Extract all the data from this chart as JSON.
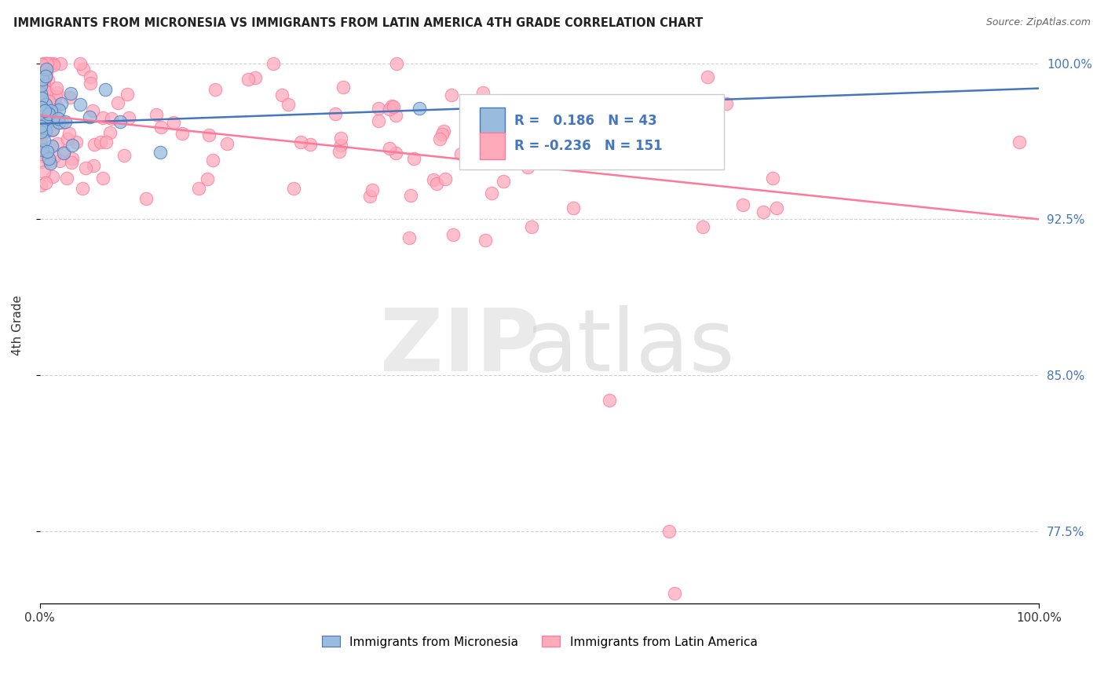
{
  "title": "IMMIGRANTS FROM MICRONESIA VS IMMIGRANTS FROM LATIN AMERICA 4TH GRADE CORRELATION CHART",
  "source": "Source: ZipAtlas.com",
  "ylabel": "4th Grade",
  "xlim": [
    0.0,
    1.0
  ],
  "ylim": [
    0.74,
    1.008
  ],
  "yticks": [
    0.775,
    0.85,
    0.925,
    1.0
  ],
  "ytick_labels": [
    "77.5%",
    "85.0%",
    "92.5%",
    "100.0%"
  ],
  "xtick_labels": [
    "0.0%",
    "100.0%"
  ],
  "blue_R": 0.186,
  "blue_N": 43,
  "pink_R": -0.236,
  "pink_N": 151,
  "blue_color": "#99BBDD",
  "pink_color": "#FFAABB",
  "blue_edge_color": "#4477BB",
  "pink_edge_color": "#FF7799",
  "blue_line_color": "#4477BB",
  "pink_line_color": "#FF7799",
  "legend_label_blue": "Immigrants from Micronesia",
  "legend_label_pink": "Immigrants from Latin America",
  "background_color": "#FFFFFF",
  "blue_trend_x": [
    0.0,
    1.0
  ],
  "blue_trend_y": [
    0.971,
    0.988
  ],
  "pink_trend_x": [
    0.0,
    1.0
  ],
  "pink_trend_y": [
    0.975,
    0.925
  ]
}
